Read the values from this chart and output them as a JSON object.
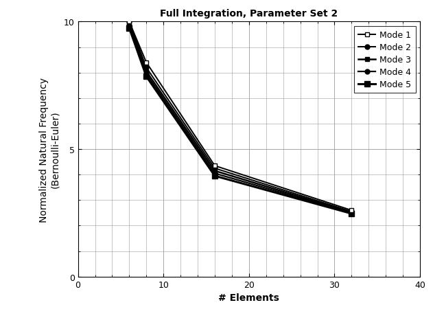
{
  "title": "Full Integration, Parameter Set 2",
  "xlabel": "# Elements",
  "ylabel_line1": "Normalized Natural Frequency",
  "ylabel_line2": "(Bernoulli-Euler)",
  "xlim": [
    0,
    40
  ],
  "ylim": [
    0,
    10
  ],
  "xticks": [
    0,
    10,
    20,
    30,
    40
  ],
  "yticks": [
    0,
    5,
    10
  ],
  "x_minor_step": 2,
  "y_minor_step": 1,
  "modes": [
    {
      "label": "Mode 1",
      "x": [
        6,
        8,
        16,
        32
      ],
      "y": [
        10.0,
        8.4,
        4.35,
        2.6
      ],
      "marker": "s",
      "markersize": 5,
      "linewidth": 1.4,
      "color": "#000000",
      "markerfacecolor": "white",
      "zorder": 5
    },
    {
      "label": "Mode 2",
      "x": [
        6,
        8,
        16,
        32
      ],
      "y": [
        10.0,
        8.2,
        4.25,
        2.55
      ],
      "marker": "o",
      "markersize": 5,
      "linewidth": 1.4,
      "color": "#000000",
      "markerfacecolor": "#000000",
      "zorder": 4
    },
    {
      "label": "Mode 3",
      "x": [
        6,
        8,
        16,
        32
      ],
      "y": [
        9.9,
        8.05,
        4.15,
        2.52
      ],
      "marker": "s",
      "markersize": 5,
      "linewidth": 1.8,
      "color": "#000000",
      "markerfacecolor": "#000000",
      "zorder": 3
    },
    {
      "label": "Mode 4",
      "x": [
        6,
        8,
        16,
        32
      ],
      "y": [
        9.85,
        7.95,
        4.05,
        2.5
      ],
      "marker": "o",
      "markersize": 5,
      "linewidth": 1.6,
      "color": "#000000",
      "markerfacecolor": "#000000",
      "zorder": 2
    },
    {
      "label": "Mode 5",
      "x": [
        6,
        8,
        16,
        32
      ],
      "y": [
        9.75,
        7.85,
        3.95,
        2.47
      ],
      "marker": "s",
      "markersize": 6,
      "linewidth": 2.2,
      "color": "#000000",
      "markerfacecolor": "#000000",
      "zorder": 1
    }
  ],
  "legend_loc": "upper right",
  "legend_bbox": null,
  "grid_color": "#999999",
  "grid_linewidth_major": 0.6,
  "grid_linewidth_minor": 0.4,
  "title_fontsize": 10,
  "label_fontsize": 10,
  "tick_fontsize": 9,
  "legend_fontsize": 9,
  "background_color": "#ffffff",
  "fig_width": 6.31,
  "fig_height": 4.64,
  "dpi": 100
}
